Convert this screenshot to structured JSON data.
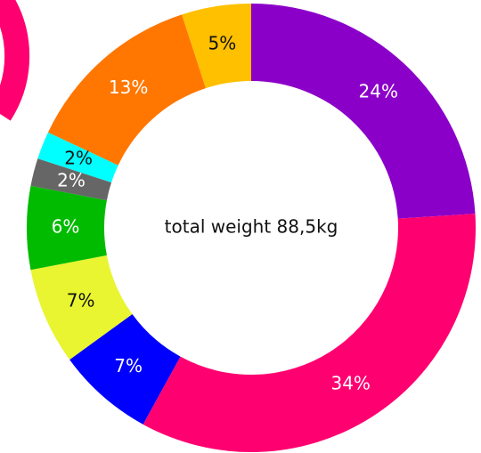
{
  "chart_data": {
    "type": "donut",
    "center_label": "total weight 88,5kg",
    "values": [
      24,
      34,
      7,
      7,
      6,
      2,
      2,
      13,
      5
    ],
    "value_labels": [
      "24%",
      "34%",
      "7%",
      "7%",
      "6%",
      "2%",
      "2%",
      "13%",
      "5%"
    ],
    "colors": [
      "#8b00c9",
      "#ff0070",
      "#0000ff",
      "#e8f530",
      "#00bb00",
      "#666666",
      "#00ffff",
      "#ff7700",
      "#ffc000"
    ]
  }
}
